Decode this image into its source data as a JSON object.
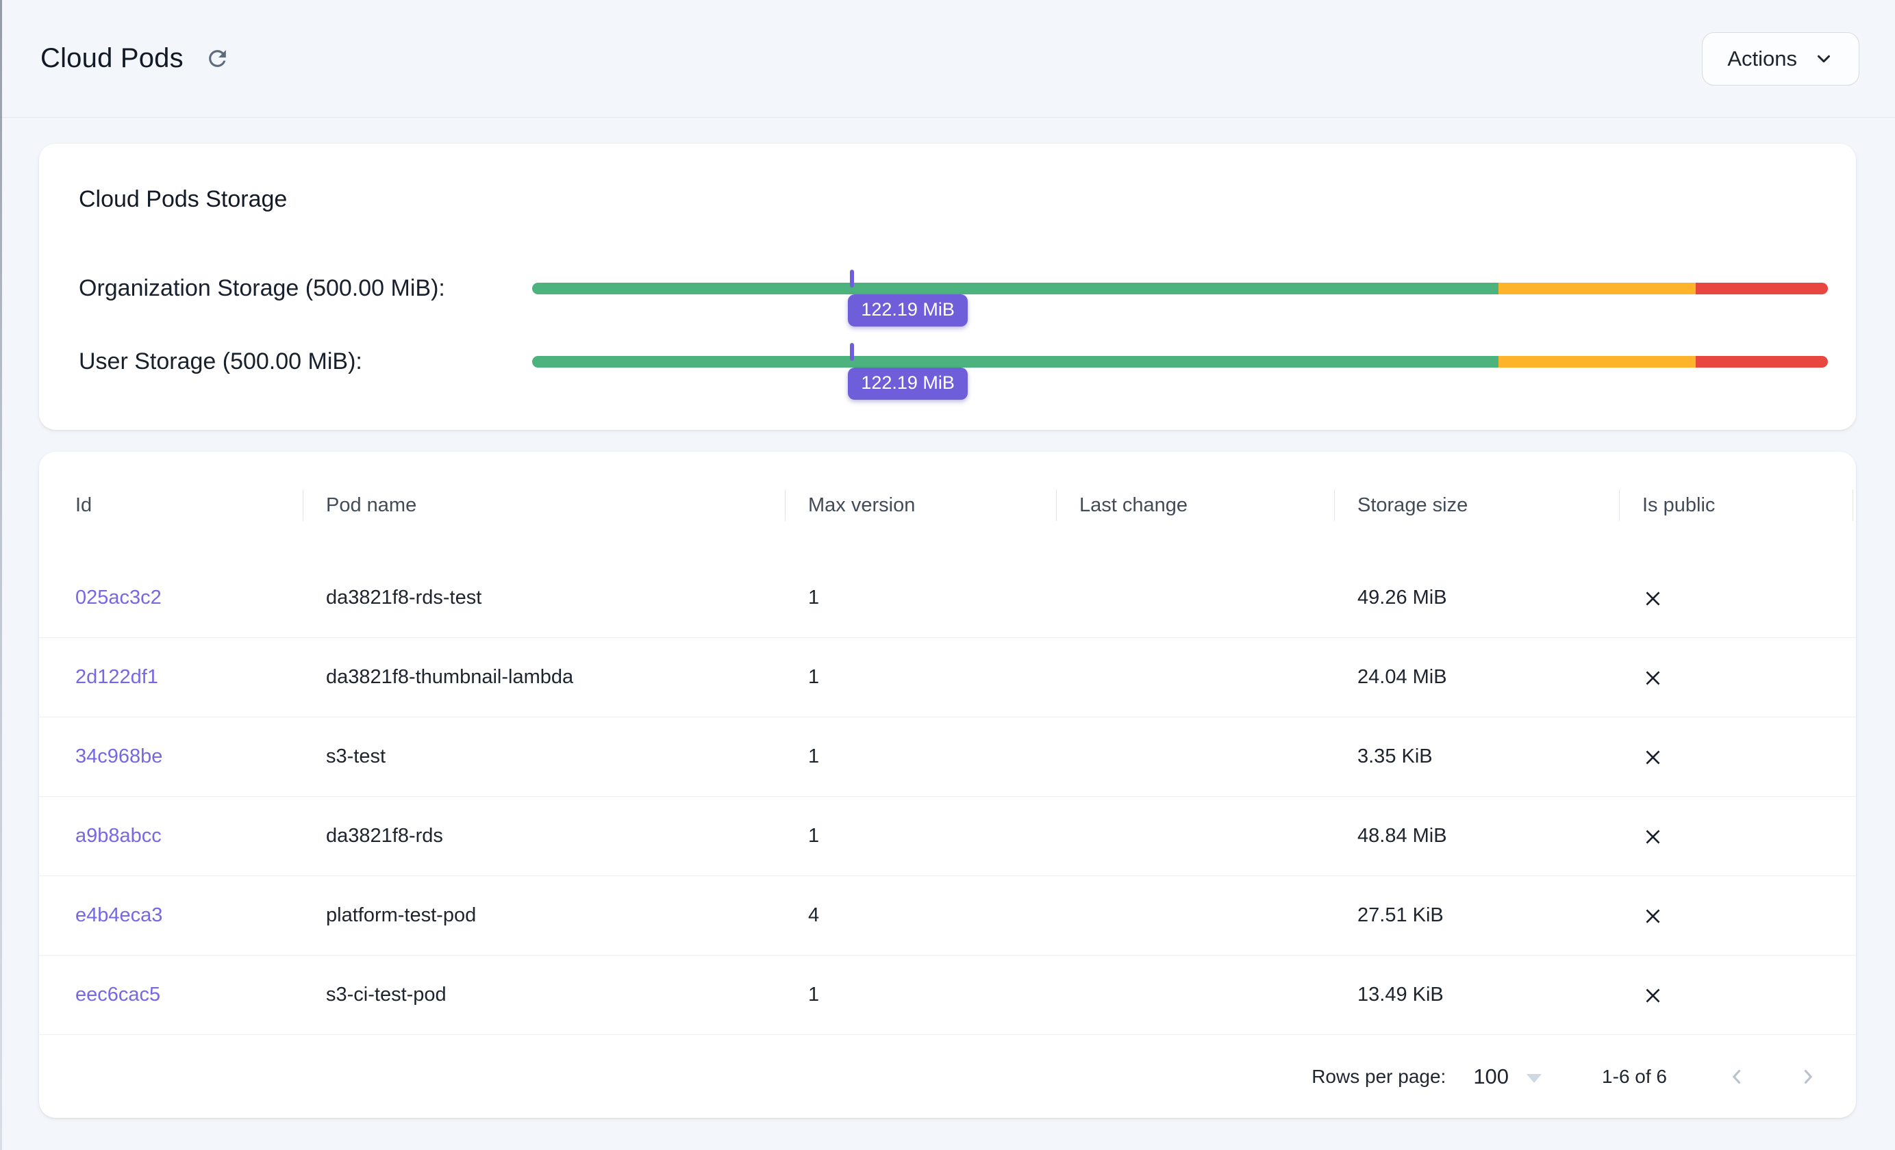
{
  "colors": {
    "accent": "#6f5ed9",
    "link": "#7668e2",
    "green": "#4db37e",
    "yellow": "#fdb32a",
    "red": "#e8473f",
    "bg": "#f3f6fa",
    "card": "#ffffff"
  },
  "header": {
    "title": "Cloud Pods",
    "actions_label": "Actions"
  },
  "storage_card": {
    "title": "Cloud Pods Storage",
    "segments": {
      "green_pct": 74.6,
      "yellow_pct": 15.2,
      "red_pct": 10.2
    },
    "bars": [
      {
        "label": "Organization Storage (500.00 MiB):",
        "value_label": "122.19 MiB",
        "marker_pct": 24.7
      },
      {
        "label": "User Storage (500.00 MiB):",
        "value_label": "122.19 MiB",
        "marker_pct": 24.7
      }
    ]
  },
  "table": {
    "columns": [
      "Id",
      "Pod name",
      "Max version",
      "Last change",
      "Storage size",
      "Is public"
    ],
    "rows": [
      {
        "id": "025ac3c2",
        "pod_name": "da3821f8-rds-test",
        "max_version": "1",
        "last_change": "",
        "storage_size": "49.26 MiB",
        "is_public": false
      },
      {
        "id": "2d122df1",
        "pod_name": "da3821f8-thumbnail-lambda",
        "max_version": "1",
        "last_change": "",
        "storage_size": "24.04 MiB",
        "is_public": false
      },
      {
        "id": "34c968be",
        "pod_name": "s3-test",
        "max_version": "1",
        "last_change": "",
        "storage_size": "3.35 KiB",
        "is_public": false
      },
      {
        "id": "a9b8abcc",
        "pod_name": "da3821f8-rds",
        "max_version": "1",
        "last_change": "",
        "storage_size": "48.84 MiB",
        "is_public": false
      },
      {
        "id": "e4b4eca3",
        "pod_name": "platform-test-pod",
        "max_version": "4",
        "last_change": "",
        "storage_size": "27.51 KiB",
        "is_public": false
      },
      {
        "id": "eec6cac5",
        "pod_name": "s3-ci-test-pod",
        "max_version": "1",
        "last_change": "",
        "storage_size": "13.49 KiB",
        "is_public": false
      }
    ],
    "pagination": {
      "rows_per_page_label": "Rows per page:",
      "rows_per_page_value": "100",
      "range_label": "1-6 of 6"
    }
  }
}
